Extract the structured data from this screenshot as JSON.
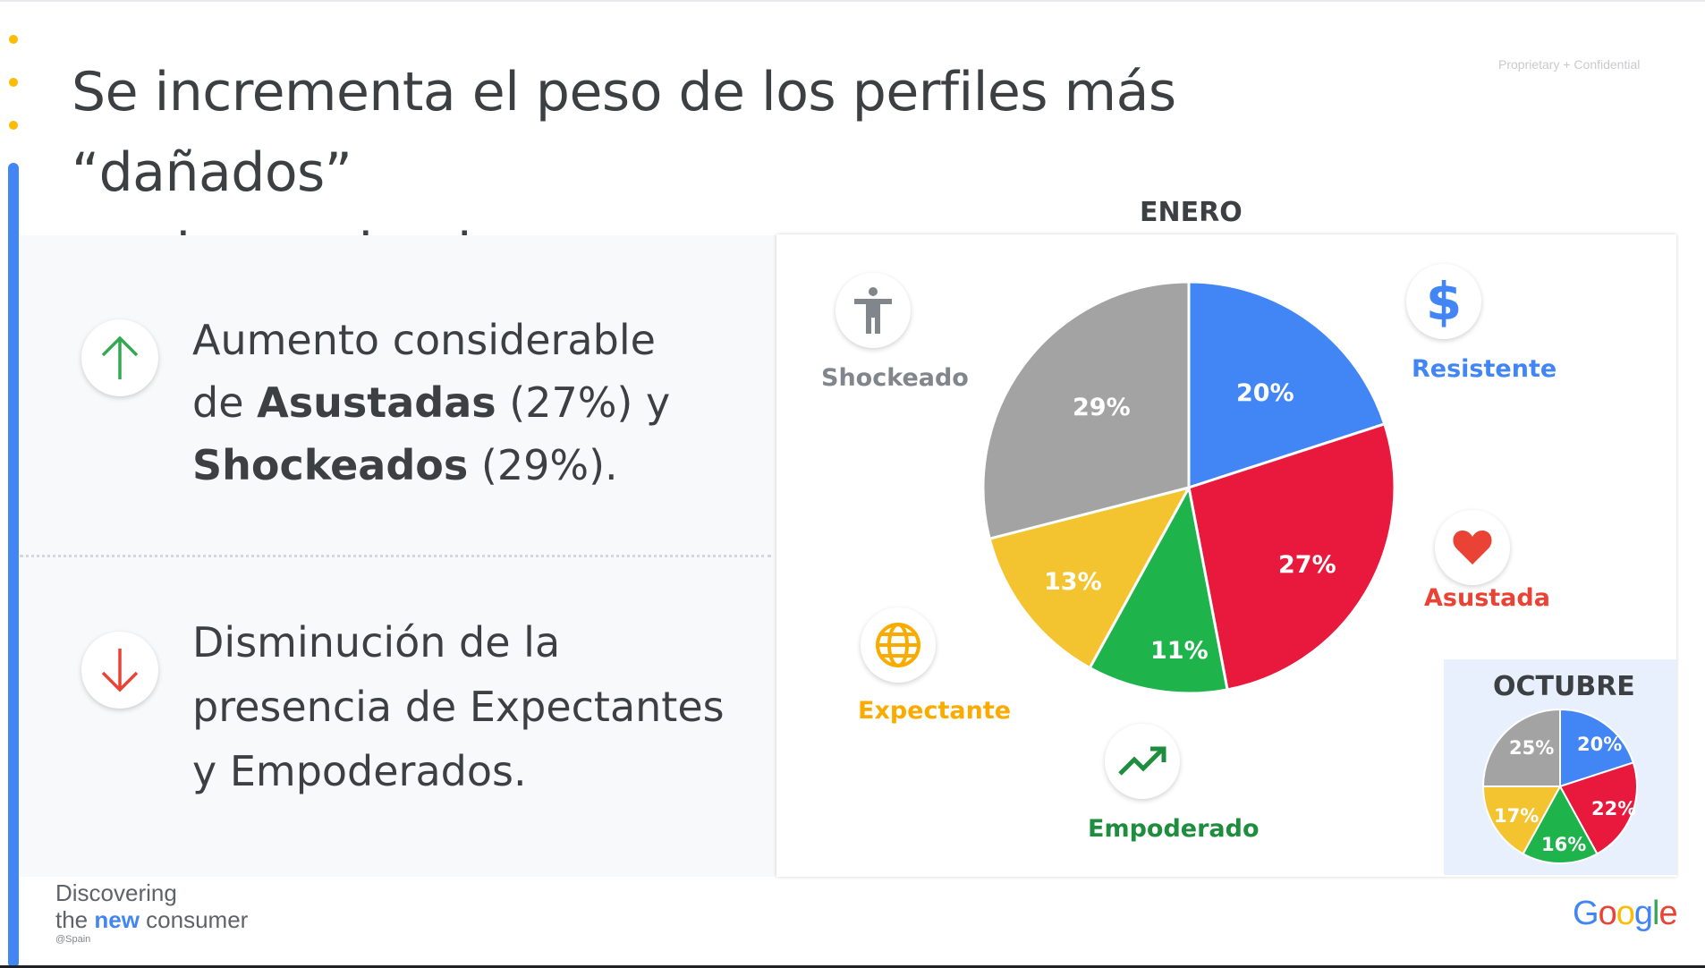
{
  "slide": {
    "title_line1": "Se incrementa el peso de los perfiles más “dañados”",
    "title_line2": "por la pandemia.",
    "confidential": "Proprietary + Confidential"
  },
  "points": {
    "increase": {
      "line1": "Aumento considerable",
      "line2_pre": "de ",
      "line2_bold": "Asustadas",
      "line2_post": " (27%) y",
      "line3_bold": "Shockeados",
      "line3_post": " (29%)."
    },
    "decrease": {
      "line1": "Disminución de la",
      "line2": "presencia de Expectantes",
      "line3": "y Empoderados."
    }
  },
  "labels": {
    "shockeado": "Shockeado",
    "resistente": "Resistente",
    "asustada": "Asustada",
    "expectante": "Expectante",
    "empoderado": "Empoderado",
    "dollar_symbol": "$"
  },
  "colors": {
    "blue": "#4285f4",
    "red": "#e8193c",
    "green": "#1fb34c",
    "yellow": "#f4c430",
    "gray": "#a3a3a3",
    "orange_label": "#f9ab00"
  },
  "chart_data": [
    {
      "type": "pie",
      "title": "ENERO",
      "categories": [
        "Resistente",
        "Asustada",
        "Empoderado",
        "Expectante",
        "Shockeado"
      ],
      "values": [
        20,
        27,
        11,
        13,
        29
      ],
      "value_labels": [
        "20%",
        "27%",
        "11%",
        "13%",
        "29%"
      ]
    },
    {
      "type": "pie",
      "title": "OCTUBRE",
      "categories": [
        "Resistente",
        "Asustada",
        "Empoderado",
        "Expectante",
        "Shockeado"
      ],
      "values": [
        20,
        22,
        16,
        17,
        25
      ],
      "value_labels": [
        "20%",
        "22%",
        "16%",
        "17%",
        "25%"
      ]
    }
  ],
  "brand": {
    "line1": "Discovering",
    "line2_pre": "the ",
    "line2_new": "new",
    "line2_post": " consumer",
    "line3": "@Spain",
    "google": [
      "G",
      "o",
      "o",
      "g",
      "l",
      "e"
    ]
  }
}
